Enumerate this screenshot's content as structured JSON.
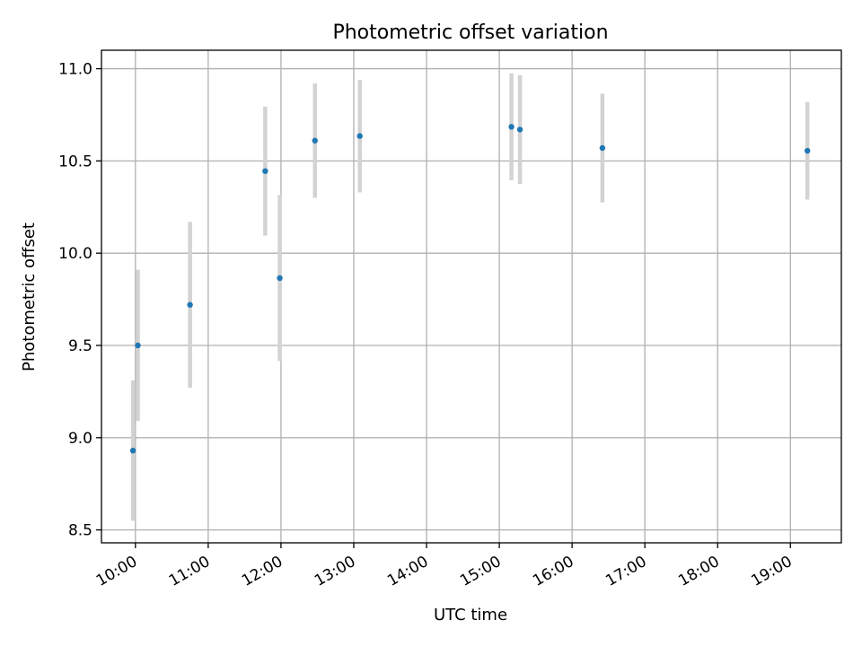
{
  "chart_data": {
    "type": "scatter",
    "title": "Photometric offset variation",
    "xlabel": "UTC time",
    "ylabel": "Photometric offset",
    "x_axis_type": "time",
    "xlim": [
      "09:32",
      "19:42"
    ],
    "ylim": [
      8.43,
      11.1
    ],
    "xticks": [
      "10:00",
      "11:00",
      "12:00",
      "13:00",
      "14:00",
      "15:00",
      "16:00",
      "17:00",
      "18:00",
      "19:00"
    ],
    "yticks": [
      "8.5",
      "9.0",
      "9.5",
      "10.0",
      "10.5",
      "11.0"
    ],
    "grid": true,
    "colors": {
      "marker": "#1f77b4",
      "errorbar": "#d3d3d3",
      "grid": "#b0b0b0"
    },
    "series": [
      {
        "points": [
          {
            "x": "09:58",
            "y": 8.93,
            "err": 0.38
          },
          {
            "x": "10:02",
            "y": 9.5,
            "err": 0.41
          },
          {
            "x": "10:45",
            "y": 9.72,
            "err": 0.45
          },
          {
            "x": "11:47",
            "y": 10.445,
            "err": 0.35
          },
          {
            "x": "11:59",
            "y": 9.865,
            "err": 0.45
          },
          {
            "x": "12:28",
            "y": 10.61,
            "err": 0.31
          },
          {
            "x": "13:05",
            "y": 10.635,
            "err": 0.305
          },
          {
            "x": "15:10",
            "y": 10.685,
            "err": 0.29
          },
          {
            "x": "15:17",
            "y": 10.67,
            "err": 0.295
          },
          {
            "x": "16:25",
            "y": 10.57,
            "err": 0.295
          },
          {
            "x": "19:14",
            "y": 10.555,
            "err": 0.265
          }
        ]
      }
    ]
  }
}
